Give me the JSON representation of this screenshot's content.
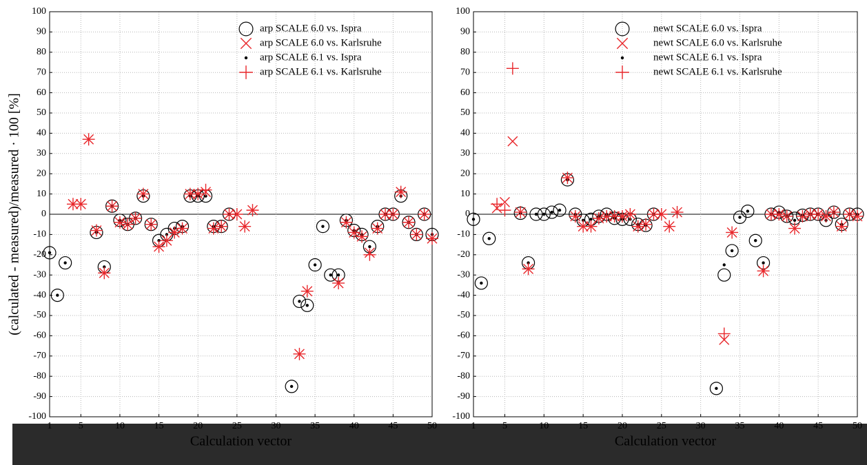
{
  "chart_data": [
    {
      "type": "scatter",
      "x_label": "Calculation vector",
      "y_label": "(calculated - measured)/measured · 100 [%]",
      "xlim": [
        1,
        50
      ],
      "ylim": [
        -100,
        100
      ],
      "xticks": [
        1,
        5,
        10,
        15,
        20,
        25,
        30,
        35,
        40,
        45,
        50
      ],
      "yticks": [
        -100,
        -90,
        -80,
        -70,
        -60,
        -50,
        -40,
        -30,
        -20,
        -10,
        0,
        10,
        20,
        30,
        40,
        50,
        60,
        70,
        80,
        90,
        100
      ],
      "grid": true,
      "legend": "upper right",
      "series": [
        {
          "name": "arp SCALE 6.0 vs. Ispra",
          "color": "#000000",
          "marker": "circle",
          "x": [
            1,
            2,
            3,
            7,
            8,
            9,
            10,
            11,
            12,
            13,
            14,
            15,
            16,
            17,
            18,
            19,
            20,
            21,
            22,
            23,
            24,
            32,
            33,
            34,
            35,
            36,
            37,
            38,
            39,
            40,
            41,
            42,
            43,
            44,
            45,
            46,
            47,
            48,
            49,
            50
          ],
          "values": [
            -19,
            -40,
            -24,
            -9,
            -26,
            4,
            -3,
            -5,
            -2,
            9,
            -5,
            -13,
            -10,
            -7,
            -6,
            9,
            9,
            9,
            -6,
            -6,
            0,
            -85,
            -43,
            -45,
            -25,
            -6,
            -30,
            -30,
            -3,
            -8,
            -10,
            -16,
            -6,
            0,
            0,
            9,
            -4,
            -10,
            0,
            -10
          ]
        },
        {
          "name": "arp SCALE 6.0 vs. Karlsruhe",
          "color": "#e8262a",
          "marker": "x",
          "x": [
            4,
            5,
            6,
            7,
            8,
            9,
            10,
            11,
            12,
            13,
            14,
            15,
            16,
            17,
            18,
            19,
            20,
            21,
            22,
            23,
            24,
            25,
            26,
            27,
            33,
            34,
            38,
            39,
            40,
            41,
            42,
            43,
            44,
            45,
            46,
            47,
            48,
            49,
            50
          ],
          "values": [
            5,
            5,
            37,
            -8,
            -29,
            4,
            -4,
            -5,
            -2,
            10,
            -5,
            -16,
            -13,
            -9,
            -7,
            10,
            10,
            11,
            -7,
            -6,
            0,
            0,
            -6,
            2,
            -69,
            -38,
            -34,
            -4,
            -9,
            -11,
            -19,
            -7,
            0,
            0,
            11,
            -4,
            -10,
            0,
            -12
          ]
        },
        {
          "name": "arp SCALE 6.1 vs. Ispra",
          "color": "#000000",
          "marker": "dot",
          "x": [
            1,
            2,
            3,
            7,
            8,
            9,
            10,
            11,
            12,
            13,
            14,
            15,
            16,
            17,
            18,
            19,
            20,
            21,
            22,
            23,
            24,
            32,
            33,
            34,
            35,
            36,
            37,
            38,
            39,
            40,
            41,
            42,
            43,
            44,
            45,
            46,
            47,
            48,
            49,
            50
          ],
          "values": [
            -19,
            -40,
            -24,
            -9,
            -26,
            4,
            -3,
            -5,
            -2,
            9,
            -5,
            -13,
            -10,
            -7,
            -6,
            9,
            9,
            9,
            -6,
            -6,
            0,
            -85,
            -43,
            -45,
            -25,
            -6,
            -30,
            -30,
            -3,
            -8,
            -10,
            -16,
            -6,
            0,
            0,
            9,
            -4,
            -10,
            0,
            -10
          ]
        },
        {
          "name": "arp SCALE 6.1 vs. Karlsruhe",
          "color": "#e8262a",
          "marker": "plus",
          "x": [
            4,
            5,
            6,
            7,
            8,
            9,
            10,
            11,
            12,
            13,
            14,
            15,
            16,
            17,
            18,
            19,
            20,
            21,
            22,
            23,
            24,
            25,
            26,
            27,
            33,
            34,
            38,
            39,
            40,
            41,
            42,
            43,
            44,
            45,
            46,
            47,
            48,
            49,
            50
          ],
          "values": [
            5,
            5,
            37,
            -8,
            -29,
            4,
            -4,
            -5,
            -2,
            10,
            -5,
            -16,
            -13,
            -9,
            -7,
            10,
            10,
            12,
            -7,
            -6,
            0,
            0,
            -6,
            2,
            -69,
            -38,
            -34,
            -4,
            -9,
            -11,
            -20,
            -7,
            0,
            0,
            11,
            -4,
            -10,
            0,
            -12
          ]
        }
      ]
    },
    {
      "type": "scatter",
      "x_label": "Calculation vector",
      "xlim": [
        1,
        50
      ],
      "ylim": [
        -100,
        100
      ],
      "xticks": [
        1,
        5,
        10,
        15,
        20,
        25,
        30,
        35,
        40,
        45,
        50
      ],
      "yticks": [
        -100,
        -90,
        -80,
        -70,
        -60,
        -50,
        -40,
        -30,
        -20,
        -10,
        0,
        10,
        20,
        30,
        40,
        50,
        60,
        70,
        80,
        90,
        100
      ],
      "grid": true,
      "legend": "upper right",
      "series": [
        {
          "name": "newt SCALE 6.0 vs. Ispra",
          "color": "#000000",
          "marker": "circle",
          "x": [
            1,
            2,
            3,
            7,
            8,
            9,
            10,
            11,
            12,
            13,
            14,
            15,
            16,
            17,
            18,
            19,
            20,
            21,
            22,
            23,
            24,
            32,
            33,
            34,
            35,
            36,
            37,
            38,
            39,
            40,
            41,
            42,
            43,
            44,
            45,
            46,
            47,
            48,
            49,
            50
          ],
          "values": [
            -2.5,
            -34,
            -12,
            0.5,
            -24,
            0,
            0,
            1,
            2,
            17,
            0,
            -3,
            -2.5,
            -1,
            0,
            -2,
            -2.5,
            -2.5,
            -5,
            -5.5,
            0,
            -86,
            -30,
            -18,
            -1.5,
            1.5,
            -13,
            -24,
            0,
            1,
            -1,
            -2,
            -0.5,
            0,
            0,
            -3,
            1,
            -5,
            0,
            0
          ]
        },
        {
          "name": "newt SCALE 6.0 vs. Karlsruhe",
          "color": "#e8262a",
          "marker": "x",
          "x": [
            4,
            5,
            6,
            7,
            8,
            13,
            14,
            15,
            16,
            17,
            18,
            19,
            20,
            21,
            22,
            23,
            24,
            25,
            26,
            27,
            33,
            34,
            38,
            39,
            40,
            41,
            42,
            43,
            44,
            45,
            46,
            47,
            48,
            49,
            50
          ],
          "values": [
            3,
            6,
            36,
            1,
            -27,
            18,
            -1,
            -6,
            -6,
            -2,
            -1,
            -1,
            -1,
            0,
            -6,
            -5,
            0,
            0,
            -6,
            1,
            -62,
            -9,
            -28,
            0,
            0,
            -1,
            -7,
            -1,
            0,
            0,
            -1,
            1,
            -6,
            0,
            -1
          ]
        },
        {
          "name": "newt SCALE 6.1 vs. Ispra",
          "color": "#000000",
          "marker": "dot",
          "x": [
            1,
            2,
            3,
            7,
            8,
            9,
            10,
            11,
            12,
            13,
            14,
            15,
            16,
            17,
            18,
            19,
            20,
            21,
            22,
            23,
            24,
            32,
            33,
            34,
            35,
            36,
            37,
            38,
            39,
            40,
            41,
            42,
            43,
            44,
            45,
            46,
            47,
            48,
            49,
            50
          ],
          "values": [
            -2.5,
            -34,
            -12,
            0.5,
            -24,
            0,
            0,
            1,
            2,
            17,
            0,
            -3,
            -2.5,
            -1,
            0,
            -2,
            -2.5,
            -2.5,
            -5,
            -5.5,
            0,
            -86,
            -25,
            -18,
            -1.5,
            1.5,
            -13,
            -24,
            0,
            1,
            -1,
            -3,
            -0.5,
            0,
            0,
            -3,
            1,
            -5,
            0,
            0
          ]
        },
        {
          "name": "newt SCALE 6.1 vs. Karlsruhe",
          "color": "#e8262a",
          "marker": "plus",
          "x": [
            4,
            5,
            6,
            7,
            8,
            13,
            14,
            15,
            16,
            17,
            18,
            19,
            20,
            21,
            22,
            23,
            24,
            25,
            26,
            27,
            33,
            34,
            38,
            39,
            40,
            41,
            42,
            43,
            44,
            45,
            46,
            47,
            48,
            49,
            50
          ],
          "values": [
            5,
            2,
            72,
            1,
            -27,
            18,
            -1,
            -6,
            -6,
            -2,
            -1,
            -1,
            -1,
            0,
            -6,
            -5,
            0,
            0,
            -6,
            1,
            -59,
            -9,
            -28,
            0,
            0,
            -1,
            -7,
            -1,
            0,
            0,
            -1,
            1,
            -6,
            0,
            -1
          ]
        }
      ]
    }
  ]
}
